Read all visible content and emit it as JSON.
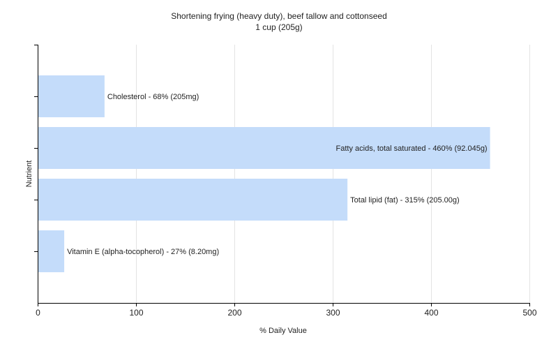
{
  "chart_data": {
    "type": "bar",
    "orientation": "horizontal",
    "title": "Shortening frying (heavy duty), beef tallow and cottonseed",
    "subtitle": "1 cup (205g)",
    "xlabel": "% Daily Value",
    "ylabel": "Nutrient",
    "xlim": [
      0,
      500
    ],
    "xticks": [
      0,
      100,
      200,
      300,
      400,
      500
    ],
    "grid": true,
    "bar_color": "#c4dcfa",
    "categories": [
      "Cholesterol",
      "Fatty acids, total saturated",
      "Total lipid (fat)",
      "Vitamin E (alpha-tocopherol)"
    ],
    "values": [
      68,
      460,
      315,
      27
    ],
    "data_labels": [
      "Cholesterol - 68% (205mg)",
      "Fatty acids, total saturated - 460% (92.045g)",
      "Total lipid (fat) - 315% (205.00g)",
      "Vitamin E (alpha-tocopherol) - 27% (8.20mg)"
    ]
  }
}
